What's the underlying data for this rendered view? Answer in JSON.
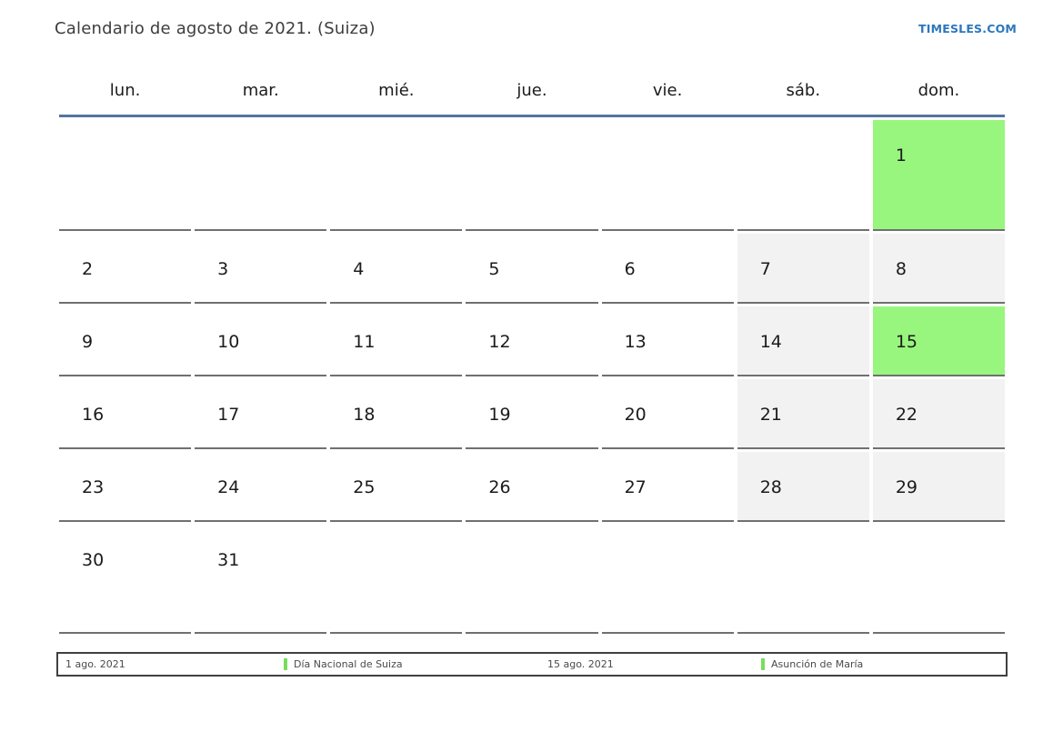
{
  "page": {
    "title": "Calendario de agosto de 2021. (Suiza)",
    "site_link": "TIMESLES.COM"
  },
  "colors": {
    "accent_rule_blue": "#53749f",
    "link_blue": "#2b77bd",
    "holiday_green": "#98f67e",
    "weekend_gray": "#f2f2f2",
    "cell_border_gray": "#707070",
    "legend_marker_green": "#79dd5c"
  },
  "calendar": {
    "weekdays": [
      "lun.",
      "mar.",
      "mié.",
      "jue.",
      "vie.",
      "sáb.",
      "dom."
    ],
    "weeks": [
      [
        {
          "day": "",
          "type": "empty"
        },
        {
          "day": "",
          "type": "empty"
        },
        {
          "day": "",
          "type": "empty"
        },
        {
          "day": "",
          "type": "empty"
        },
        {
          "day": "",
          "type": "empty"
        },
        {
          "day": "",
          "type": "empty"
        },
        {
          "day": "1",
          "type": "holiday"
        }
      ],
      [
        {
          "day": "2",
          "type": "workday"
        },
        {
          "day": "3",
          "type": "workday"
        },
        {
          "day": "4",
          "type": "workday"
        },
        {
          "day": "5",
          "type": "workday"
        },
        {
          "day": "6",
          "type": "workday"
        },
        {
          "day": "7",
          "type": "weekend"
        },
        {
          "day": "8",
          "type": "weekend"
        }
      ],
      [
        {
          "day": "9",
          "type": "workday"
        },
        {
          "day": "10",
          "type": "workday"
        },
        {
          "day": "11",
          "type": "workday"
        },
        {
          "day": "12",
          "type": "workday"
        },
        {
          "day": "13",
          "type": "workday"
        },
        {
          "day": "14",
          "type": "weekend"
        },
        {
          "day": "15",
          "type": "holiday"
        }
      ],
      [
        {
          "day": "16",
          "type": "workday"
        },
        {
          "day": "17",
          "type": "workday"
        },
        {
          "day": "18",
          "type": "workday"
        },
        {
          "day": "19",
          "type": "workday"
        },
        {
          "day": "20",
          "type": "workday"
        },
        {
          "day": "21",
          "type": "weekend"
        },
        {
          "day": "22",
          "type": "weekend"
        }
      ],
      [
        {
          "day": "23",
          "type": "workday"
        },
        {
          "day": "24",
          "type": "workday"
        },
        {
          "day": "25",
          "type": "workday"
        },
        {
          "day": "26",
          "type": "workday"
        },
        {
          "day": "27",
          "type": "workday"
        },
        {
          "day": "28",
          "type": "weekend"
        },
        {
          "day": "29",
          "type": "weekend"
        }
      ],
      [
        {
          "day": "30",
          "type": "workday"
        },
        {
          "day": "31",
          "type": "workday"
        },
        {
          "day": "",
          "type": "empty"
        },
        {
          "day": "",
          "type": "empty"
        },
        {
          "day": "",
          "type": "empty"
        },
        {
          "day": "",
          "type": "empty"
        },
        {
          "day": "",
          "type": "empty"
        }
      ]
    ]
  },
  "legend": {
    "items": [
      {
        "text": "1 ago. 2021",
        "marker": false
      },
      {
        "text": "Día Nacional de Suiza",
        "marker": true
      },
      {
        "text": "15 ago. 2021",
        "marker": false
      },
      {
        "text": "Asunción de María",
        "marker": true
      }
    ]
  }
}
